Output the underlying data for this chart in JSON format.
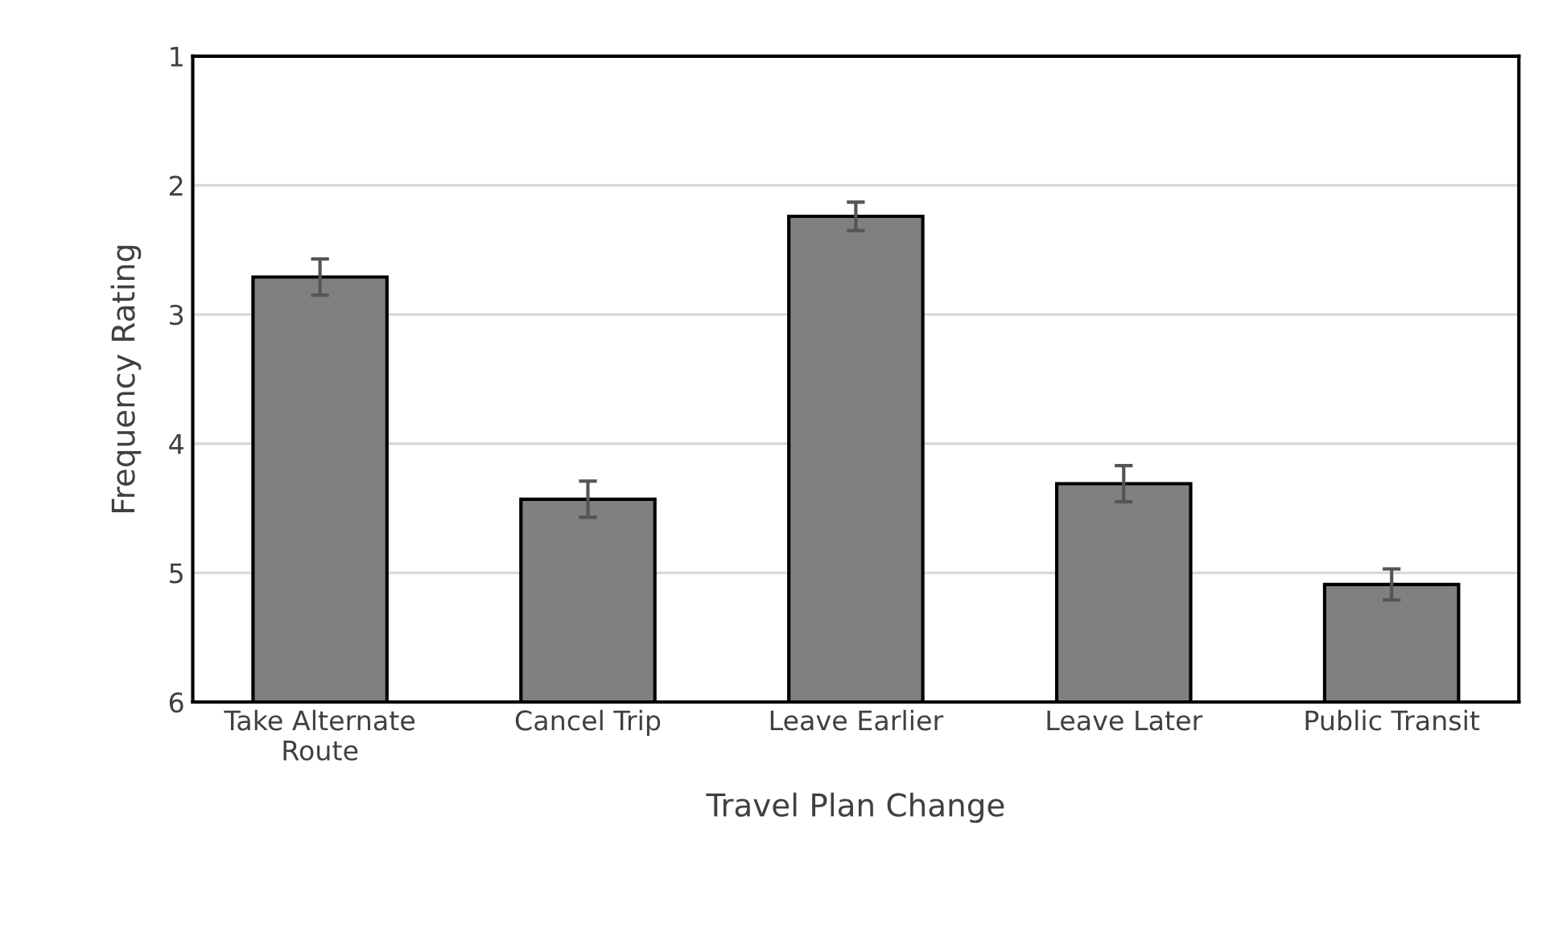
{
  "chart_data": {
    "type": "bar",
    "xlabel": "Travel Plan Change",
    "ylabel": "Frequency Rating",
    "categories": [
      "Take Alternate\nRoute",
      "Cancel Trip",
      "Leave Earlier",
      "Leave Later",
      "Public Transit"
    ],
    "base": [
      6,
      6,
      6,
      6,
      6
    ],
    "values": [
      -3.29,
      -1.57,
      -3.76,
      -1.69,
      -0.91
    ],
    "errors": [
      0.14,
      0.14,
      0.11,
      0.14,
      0.12
    ],
    "color": "#808080",
    "ylim": [
      6,
      1
    ],
    "yticks": [
      1,
      2,
      3,
      4,
      5,
      6
    ],
    "grid": "y"
  }
}
